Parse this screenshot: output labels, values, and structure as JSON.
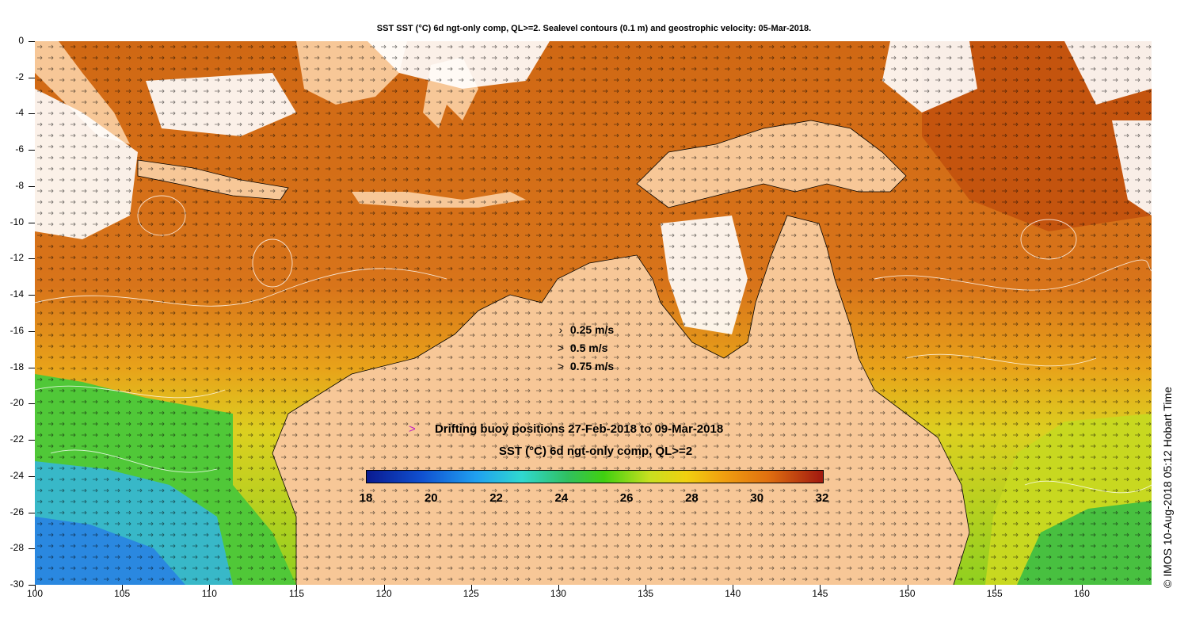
{
  "title": "SST SST (°C) 6d ngt-only comp, QL>=2. Sealevel contours (0.1 m) and geostrophic velocity: 05-Mar-2018.",
  "axes": {
    "x_ticks": [
      "100",
      "105",
      "110",
      "115",
      "120",
      "125",
      "130",
      "135",
      "140",
      "145",
      "150",
      "155",
      "160"
    ],
    "y_ticks": [
      "0",
      "-2",
      "-4",
      "-6",
      "-8",
      "-10",
      "-12",
      "-14",
      "-16",
      "-18",
      "-20",
      "-22",
      "-24",
      "-26",
      "-28",
      "-30"
    ]
  },
  "velocity_legend": [
    {
      "symbol": "›",
      "label": "0.25 m/s"
    },
    {
      "symbol": ">",
      "label": "0.5 m/s"
    },
    {
      "symbol": ">",
      "label": "0.75 m/s"
    }
  ],
  "buoy_legend": {
    "symbol": ">",
    "label": "Drifting buoy positions 27-Feb-2018 to 09-Mar-2018"
  },
  "colorbar": {
    "label": "SST (°C) 6d ngt-only comp, QL>=2",
    "ticks": [
      "18",
      "20",
      "22",
      "24",
      "26",
      "28",
      "30",
      "32"
    ],
    "min": 18,
    "max": 32
  },
  "credit": "© IMOS 10-Aug-2018 05:12 Hobart Time",
  "colors": {
    "land": "#f7c797",
    "cloud": "#ffffff",
    "warm": "#d96a10",
    "hot": "#c0500c",
    "mid": "#e89a18",
    "yellow": "#e8d820",
    "green": "#40c030",
    "cyan": "#30b0d8",
    "blue": "#3080e0"
  }
}
